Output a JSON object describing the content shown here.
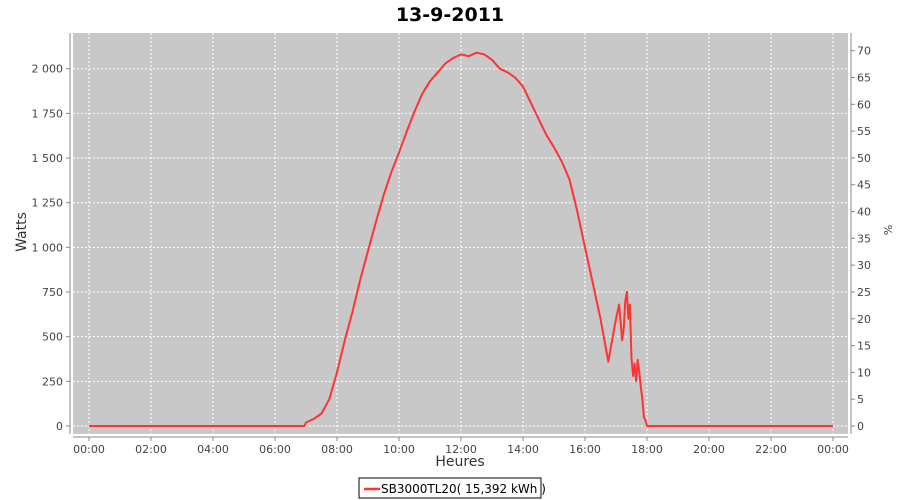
{
  "chart_data": {
    "type": "line",
    "title": "13-9-2011",
    "xlabel": "Heures",
    "ylabel": "Watts",
    "y2label": "%",
    "x_unit": "hours",
    "xlim": [
      0,
      24
    ],
    "ylim": [
      0,
      2200
    ],
    "y2lim": [
      0,
      73.3
    ],
    "x_ticks": [
      0,
      2,
      4,
      6,
      8,
      10,
      12,
      14,
      16,
      18,
      20,
      22,
      24
    ],
    "x_tick_labels": [
      "00:00",
      "02:00",
      "04:00",
      "06:00",
      "08:00",
      "10:00",
      "12:00",
      "14:00",
      "16:00",
      "18:00",
      "20:00",
      "22:00",
      "00:00"
    ],
    "y_ticks": [
      0,
      250,
      500,
      750,
      1000,
      1250,
      1500,
      1750,
      2000
    ],
    "y_tick_labels": [
      "0",
      "250",
      "500",
      "750",
      "1 000",
      "1 250",
      "1 500",
      "1 750",
      "2 000"
    ],
    "y2_ticks": [
      0,
      5,
      10,
      15,
      20,
      25,
      30,
      35,
      40,
      45,
      50,
      55,
      60,
      65,
      70
    ],
    "grid": true,
    "legend_position": "bottom-center",
    "plot_background": "#c8c8c8",
    "grid_color": "#ffffff",
    "series": [
      {
        "name": "SB3000TL20( 15,392 kWh )",
        "color": "#ff3333",
        "x": [
          0,
          6.95,
          7.0,
          7.25,
          7.5,
          7.75,
          8.0,
          8.25,
          8.5,
          8.75,
          9.0,
          9.25,
          9.5,
          9.75,
          10.0,
          10.25,
          10.5,
          10.75,
          11.0,
          11.25,
          11.5,
          11.75,
          12.0,
          12.25,
          12.5,
          12.75,
          13.0,
          13.25,
          13.5,
          13.75,
          14.0,
          14.25,
          14.5,
          14.75,
          15.0,
          15.25,
          15.5,
          15.75,
          16.0,
          16.25,
          16.5,
          16.75,
          17.0,
          17.1,
          17.2,
          17.25,
          17.3,
          17.35,
          17.4,
          17.45,
          17.5,
          17.55,
          17.6,
          17.65,
          17.7,
          17.75,
          17.8,
          17.85,
          17.9,
          17.95,
          18.0,
          18.1,
          18.15,
          18.2,
          18.3,
          18.4,
          18.5,
          18.6,
          18.7,
          18.8,
          18.9,
          19.0,
          24
        ],
        "values": [
          0,
          0,
          20,
          40,
          70,
          150,
          300,
          480,
          640,
          820,
          980,
          1140,
          1290,
          1420,
          1530,
          1650,
          1760,
          1860,
          1930,
          1980,
          2030,
          2060,
          2080,
          2070,
          2090,
          2080,
          2050,
          2000,
          1980,
          1950,
          1900,
          1810,
          1720,
          1630,
          1560,
          1480,
          1380,
          1200,
          1000,
          800,
          600,
          360,
          600,
          680,
          480,
          550,
          700,
          750,
          600,
          680,
          380,
          280,
          350,
          250,
          370,
          300,
          220,
          150,
          50,
          30,
          0,
          0,
          0,
          0,
          0,
          0,
          0,
          0,
          0,
          0,
          0,
          0,
          0
        ]
      }
    ]
  }
}
